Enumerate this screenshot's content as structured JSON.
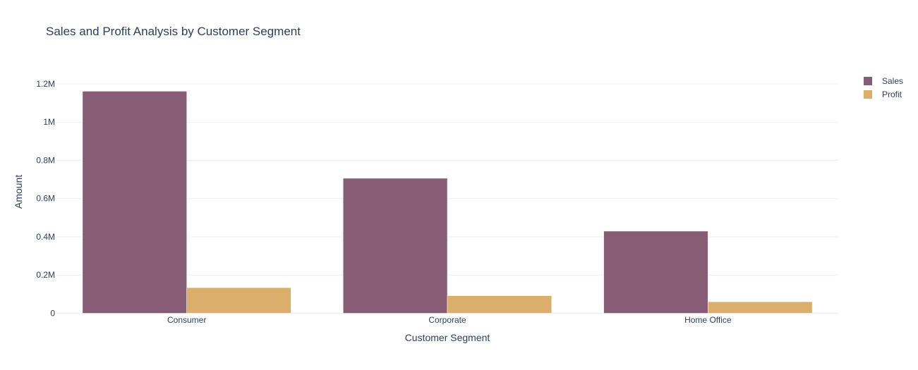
{
  "chart_data": {
    "type": "bar",
    "title": "Sales and Profit Analysis by Customer Segment",
    "xlabel": "Customer Segment",
    "ylabel": "Amount",
    "categories": [
      "Consumer",
      "Corporate",
      "Home Office"
    ],
    "series": [
      {
        "name": "Sales",
        "values": [
          1161401,
          706146,
          429653
        ],
        "color": "#865d74"
      },
      {
        "name": "Profit",
        "values": [
          134119,
          91979,
          60299
        ],
        "color": "#dcae6b"
      }
    ],
    "ylim": [
      0,
      1270000
    ],
    "yticks": [
      0,
      200000,
      400000,
      600000,
      800000,
      1000000,
      1200000
    ],
    "ytick_labels": [
      "0",
      "0.2M",
      "0.4M",
      "0.6M",
      "0.8M",
      "1M",
      "1.2M"
    ],
    "grid": true,
    "legend_position": "top-right",
    "barmode": "group"
  }
}
